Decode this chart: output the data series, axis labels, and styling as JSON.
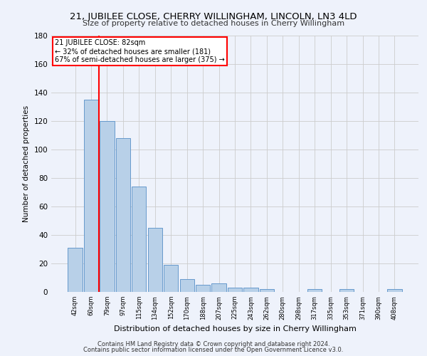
{
  "title": "21, JUBILEE CLOSE, CHERRY WILLINGHAM, LINCOLN, LN3 4LD",
  "subtitle": "Size of property relative to detached houses in Cherry Willingham",
  "xlabel": "Distribution of detached houses by size in Cherry Willingham",
  "ylabel": "Number of detached properties",
  "footnote1": "Contains HM Land Registry data © Crown copyright and database right 2024.",
  "footnote2": "Contains public sector information licensed under the Open Government Licence v3.0.",
  "bar_labels": [
    "42sqm",
    "60sqm",
    "79sqm",
    "97sqm",
    "115sqm",
    "134sqm",
    "152sqm",
    "170sqm",
    "188sqm",
    "207sqm",
    "225sqm",
    "243sqm",
    "262sqm",
    "280sqm",
    "298sqm",
    "317sqm",
    "335sqm",
    "353sqm",
    "371sqm",
    "390sqm",
    "408sqm"
  ],
  "bar_values": [
    31,
    135,
    120,
    108,
    74,
    45,
    19,
    9,
    5,
    6,
    3,
    3,
    2,
    0,
    0,
    2,
    0,
    2,
    0,
    0,
    2
  ],
  "bar_color": "#b8d0e8",
  "bar_edge_color": "#6699cc",
  "background_color": "#eef2fb",
  "grid_color": "#cccccc",
  "vline_color": "red",
  "annotation_text": "21 JUBILEE CLOSE: 82sqm\n← 32% of detached houses are smaller (181)\n67% of semi-detached houses are larger (375) →",
  "annotation_box_color": "white",
  "annotation_box_edge": "red",
  "ylim": [
    0,
    180
  ],
  "yticks": [
    0,
    20,
    40,
    60,
    80,
    100,
    120,
    140,
    160,
    180
  ]
}
